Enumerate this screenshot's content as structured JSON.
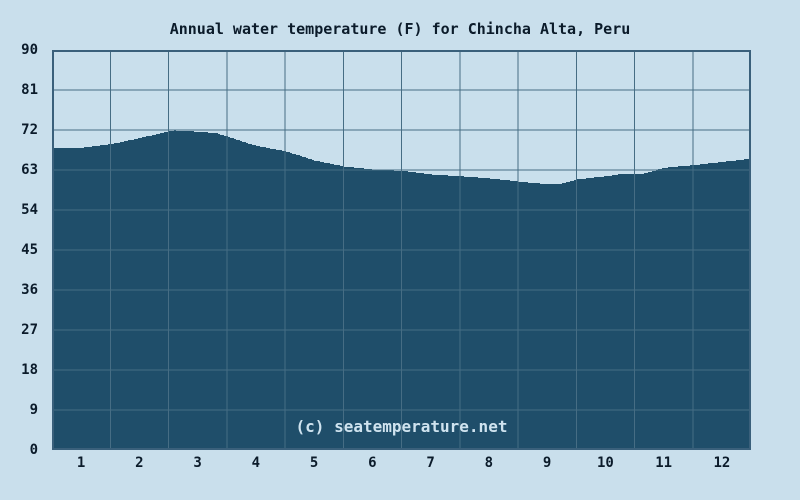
{
  "watermark": "(c) seatemperature.net",
  "colors": {
    "background": "#c9dfec",
    "area_fill": "#1f4e6a",
    "gridline": "#466d84",
    "border": "#3a607b",
    "text": "#0b1b2a",
    "watermark_text": "#cfe3ef"
  },
  "chart_data": {
    "type": "area",
    "title": "Annual water temperature (F) for Chincha Alta, Peru",
    "unit": "F",
    "categories": [
      "1",
      "2",
      "3",
      "4",
      "5",
      "6",
      "7",
      "8",
      "9",
      "10",
      "11",
      "12"
    ],
    "values": [
      68.0,
      70.2,
      71.6,
      68.4,
      65.1,
      63.1,
      62.0,
      61.1,
      59.9,
      61.6,
      63.5,
      64.8
    ],
    "yticks": [
      90,
      81,
      72,
      63,
      54,
      45,
      36,
      27,
      18,
      9,
      0
    ],
    "ylim": [
      0,
      90
    ],
    "xlim_months": [
      0,
      12
    ],
    "grid": true,
    "legend": "none",
    "xlabel": "",
    "ylabel": "",
    "profile": [
      [
        0,
        67.9
      ],
      [
        0.5,
        68.0
      ],
      [
        1,
        68.8
      ],
      [
        1.5,
        70.2
      ],
      [
        2,
        71.7
      ],
      [
        2.1,
        71.9
      ],
      [
        2.5,
        71.6
      ],
      [
        2.8,
        71.3
      ],
      [
        3,
        70.5
      ],
      [
        3.25,
        69.4
      ],
      [
        3.5,
        68.4
      ],
      [
        4,
        67.2
      ],
      [
        4.5,
        65.1
      ],
      [
        5,
        63.8
      ],
      [
        5.5,
        63.1
      ],
      [
        6,
        62.8
      ],
      [
        6.5,
        62.0
      ],
      [
        7,
        61.6
      ],
      [
        7.5,
        61.1
      ],
      [
        8,
        60.4
      ],
      [
        8.4,
        59.9
      ],
      [
        8.7,
        59.8
      ],
      [
        9,
        60.9
      ],
      [
        9.5,
        61.6
      ],
      [
        9.8,
        62.2
      ],
      [
        10.1,
        62.0
      ],
      [
        10.5,
        63.5
      ],
      [
        11,
        64.1
      ],
      [
        11.5,
        64.8
      ],
      [
        12,
        65.6
      ]
    ]
  }
}
